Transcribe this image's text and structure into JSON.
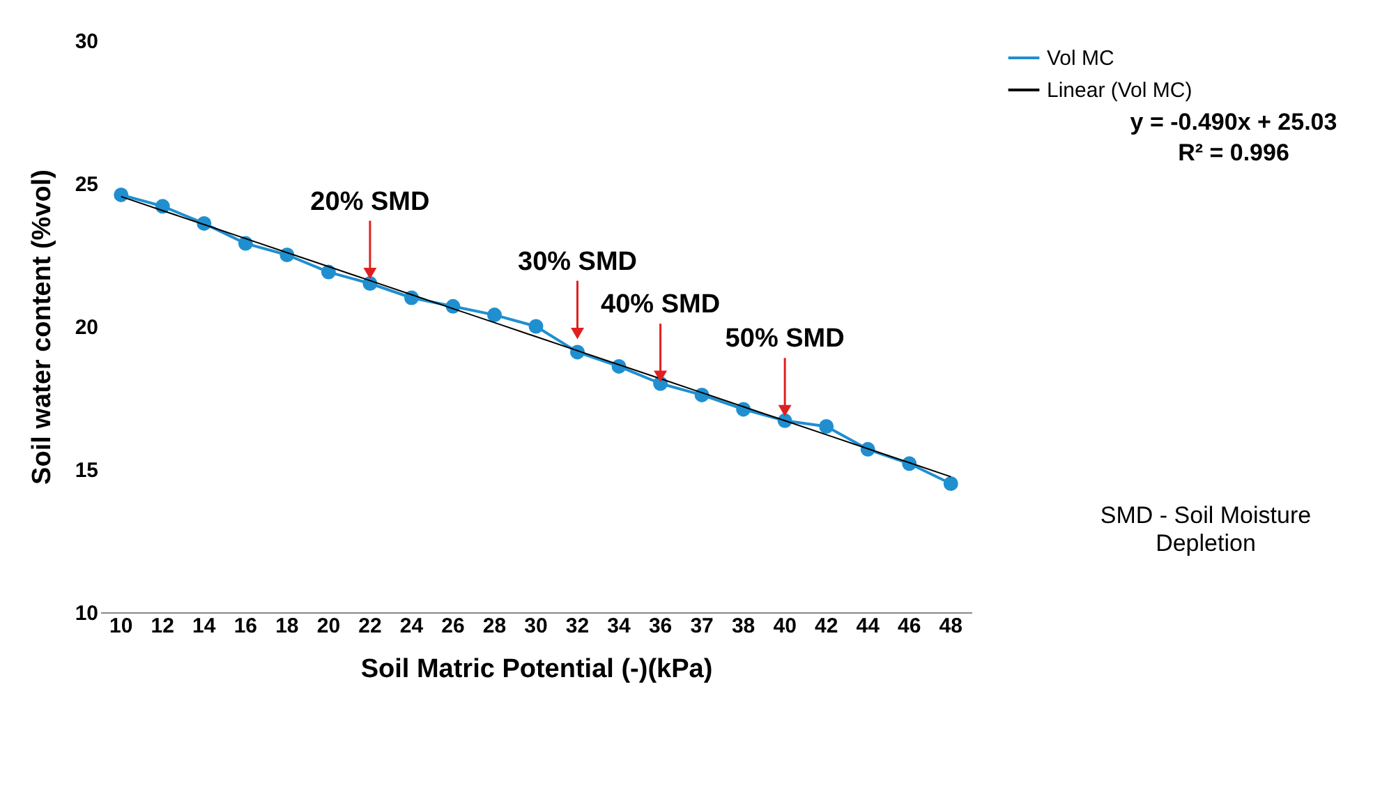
{
  "chart_data": {
    "type": "line",
    "xlabel": "Soil Matric Potential (-)(kPa)",
    "ylabel": "Soil water content (%vol)",
    "categories": [
      "10",
      "12",
      "14",
      "16",
      "18",
      "20",
      "22",
      "24",
      "26",
      "28",
      "30",
      "32",
      "34",
      "36",
      "37",
      "38",
      "40",
      "42",
      "44",
      "46",
      "48"
    ],
    "series": [
      {
        "name": "Vol MC",
        "color": "#1f8fd0",
        "marker": "circle",
        "values": [
          24.6,
          24.2,
          23.6,
          22.9,
          22.5,
          21.9,
          21.5,
          21.0,
          20.7,
          20.4,
          20.0,
          19.1,
          18.6,
          18.0,
          17.6,
          17.1,
          16.7,
          16.5,
          15.7,
          15.2,
          14.5
        ]
      },
      {
        "name": "Linear (Vol MC)",
        "color": "#000000",
        "marker": "none",
        "values": [
          24.54,
          24.05,
          23.56,
          23.07,
          22.58,
          22.09,
          21.6,
          21.11,
          20.62,
          20.13,
          19.64,
          19.15,
          18.66,
          18.17,
          17.68,
          17.19,
          16.7,
          16.21,
          15.72,
          15.23,
          14.74
        ]
      }
    ],
    "ylim": [
      10,
      30
    ],
    "yticks": [
      10,
      15,
      20,
      25,
      30
    ],
    "grid": false,
    "legend": "right",
    "annotations": [
      {
        "text": "20% SMD",
        "x": "22",
        "y": 21.5
      },
      {
        "text": "30% SMD",
        "x": "32",
        "y": 19.4
      },
      {
        "text": "40% SMD",
        "x": "36",
        "y": 17.9
      },
      {
        "text": "50% SMD",
        "x": "40",
        "y": 16.7
      },
      "y = -0.490x + 25.03",
      "R² = 0.996",
      "SMD - Soil Moisture Depletion"
    ]
  }
}
